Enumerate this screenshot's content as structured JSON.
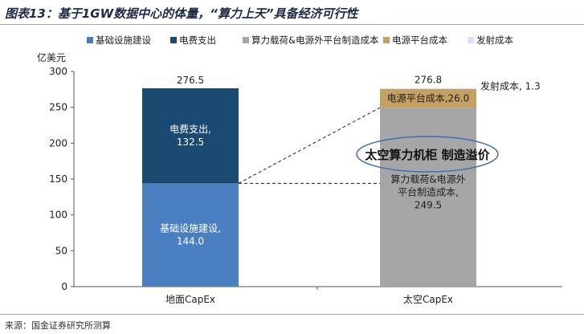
{
  "header": {
    "title": "图表13：基于1GW数据中心的体量，“算力上天”具备经济可行性"
  },
  "footer": {
    "source": "来源：国金证券研究所测算"
  },
  "chart_data": {
    "type": "bar",
    "stacked": true,
    "ylabel": "亿美元",
    "ylim": [
      0,
      300
    ],
    "yticks": [
      0,
      50,
      100,
      150,
      200,
      250,
      300
    ],
    "categories": [
      "地面CapEx",
      "太空CapEx"
    ],
    "series": [
      {
        "name": "基础设施建设",
        "values": [
          144.0,
          0
        ],
        "color": "#4a7fc1",
        "value_label": "基础设施建设,\n144.0"
      },
      {
        "name": "电费支出",
        "values": [
          132.5,
          0
        ],
        "color": "#1a4a72",
        "value_label": "电费支出,\n132.5"
      },
      {
        "name": "算力载荷&电源外平台制造成本",
        "values": [
          0,
          249.5
        ],
        "color": "#a6a6a6",
        "value_label": "算力载荷&电源外\n平台制造成本,\n249.5"
      },
      {
        "name": "电源平台成本",
        "values": [
          0,
          26.0
        ],
        "color": "#c4a061",
        "value_label": "电源平台成本,26.0"
      },
      {
        "name": "发射成本",
        "values": [
          0,
          1.3
        ],
        "color": "#d7e3f4",
        "value_label": "发射成本, 1.3"
      }
    ],
    "totals": [
      "276.5",
      "276.8"
    ],
    "annotation": "太空算力机柜 制造溢价",
    "legend_position": "top",
    "grid": false
  }
}
